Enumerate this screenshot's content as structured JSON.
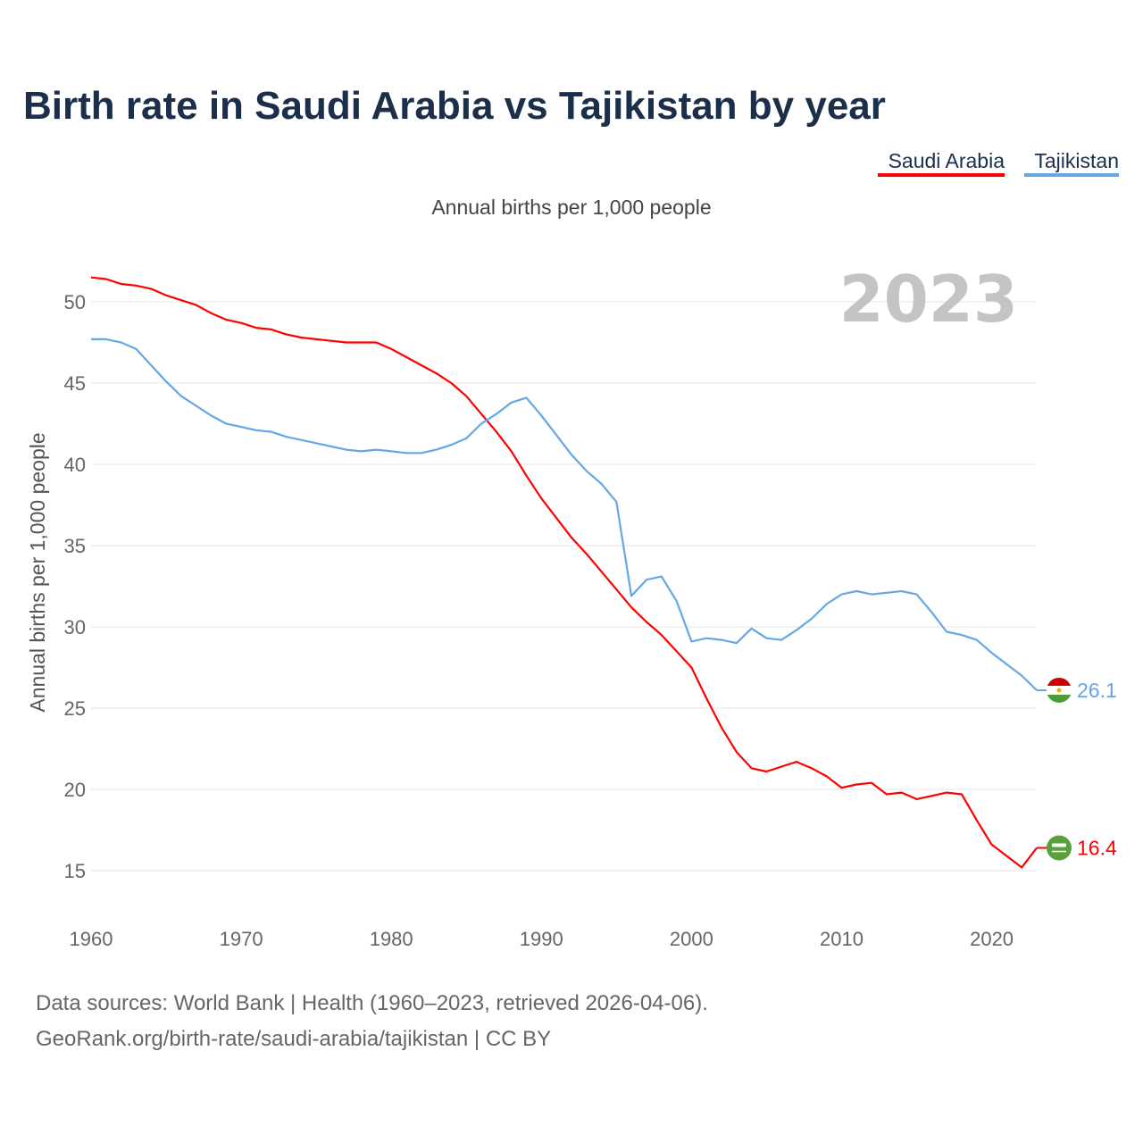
{
  "title": "Birth rate in Saudi Arabia vs Tajikistan by year",
  "subtitle": "Annual births per 1,000 people",
  "current_year": "2023",
  "source_line1": "Data sources: World Bank | Health (1960–2023, retrieved 2026-04-06).",
  "source_line2": "GeoRank.org/birth-rate/saudi-arabia/tajikistan | CC BY",
  "chart_data": {
    "type": "line",
    "title": "Birth rate in Saudi Arabia vs Tajikistan by year",
    "subtitle": "Annual births per 1,000 people",
    "xlabel": "",
    "ylabel": "Annual births per 1,000 people",
    "xlim": [
      1960,
      2023
    ],
    "ylim": [
      12.5,
      52.5
    ],
    "x_ticks": [
      1960,
      1970,
      1980,
      1990,
      2000,
      2010,
      2020
    ],
    "y_ticks": [
      15,
      20,
      25,
      30,
      35,
      40,
      45,
      50
    ],
    "grid": true,
    "legend_position": "top-right",
    "x": [
      1960,
      1961,
      1962,
      1963,
      1964,
      1965,
      1966,
      1967,
      1968,
      1969,
      1970,
      1971,
      1972,
      1973,
      1974,
      1975,
      1976,
      1977,
      1978,
      1979,
      1980,
      1981,
      1982,
      1983,
      1984,
      1985,
      1986,
      1987,
      1988,
      1989,
      1990,
      1991,
      1992,
      1993,
      1994,
      1995,
      1996,
      1997,
      1998,
      1999,
      2000,
      2001,
      2002,
      2003,
      2004,
      2005,
      2006,
      2007,
      2008,
      2009,
      2010,
      2011,
      2012,
      2013,
      2014,
      2015,
      2016,
      2017,
      2018,
      2019,
      2020,
      2021,
      2022,
      2023
    ],
    "series": [
      {
        "name": "Saudi Arabia",
        "color": "#ff0000",
        "end_label": "16.4",
        "values": [
          51.5,
          51.4,
          51.1,
          51.0,
          50.8,
          50.4,
          50.1,
          49.8,
          49.3,
          48.9,
          48.7,
          48.4,
          48.3,
          48.0,
          47.8,
          47.7,
          47.6,
          47.5,
          47.5,
          47.5,
          47.1,
          46.6,
          46.1,
          45.6,
          45.0,
          44.2,
          43.1,
          42.0,
          40.8,
          39.3,
          37.9,
          36.7,
          35.5,
          34.5,
          33.4,
          32.3,
          31.2,
          30.3,
          29.5,
          28.5,
          27.5,
          25.6,
          23.8,
          22.3,
          21.3,
          21.1,
          21.4,
          21.7,
          21.3,
          20.8,
          20.1,
          20.3,
          20.4,
          19.7,
          19.8,
          19.4,
          19.6,
          19.8,
          19.7,
          18.1,
          16.6,
          15.9,
          15.2,
          16.4
        ]
      },
      {
        "name": "Tajikistan",
        "color": "#64a7e6",
        "end_label": "26.1",
        "values": [
          47.7,
          47.7,
          47.5,
          47.1,
          46.1,
          45.1,
          44.2,
          43.6,
          43.0,
          42.5,
          42.3,
          42.1,
          42.0,
          41.7,
          41.5,
          41.3,
          41.1,
          40.9,
          40.8,
          40.9,
          40.8,
          40.7,
          40.7,
          40.9,
          41.2,
          41.6,
          42.5,
          43.1,
          43.8,
          44.1,
          43.0,
          41.8,
          40.6,
          39.6,
          38.8,
          37.7,
          31.9,
          32.9,
          33.1,
          31.6,
          29.1,
          29.3,
          29.2,
          29.0,
          29.9,
          29.3,
          29.2,
          29.8,
          30.5,
          31.4,
          32.0,
          32.2,
          32.0,
          32.1,
          32.2,
          32.0,
          30.9,
          29.7,
          29.5,
          29.2,
          28.4,
          27.7,
          27.0,
          26.1
        ]
      }
    ]
  }
}
